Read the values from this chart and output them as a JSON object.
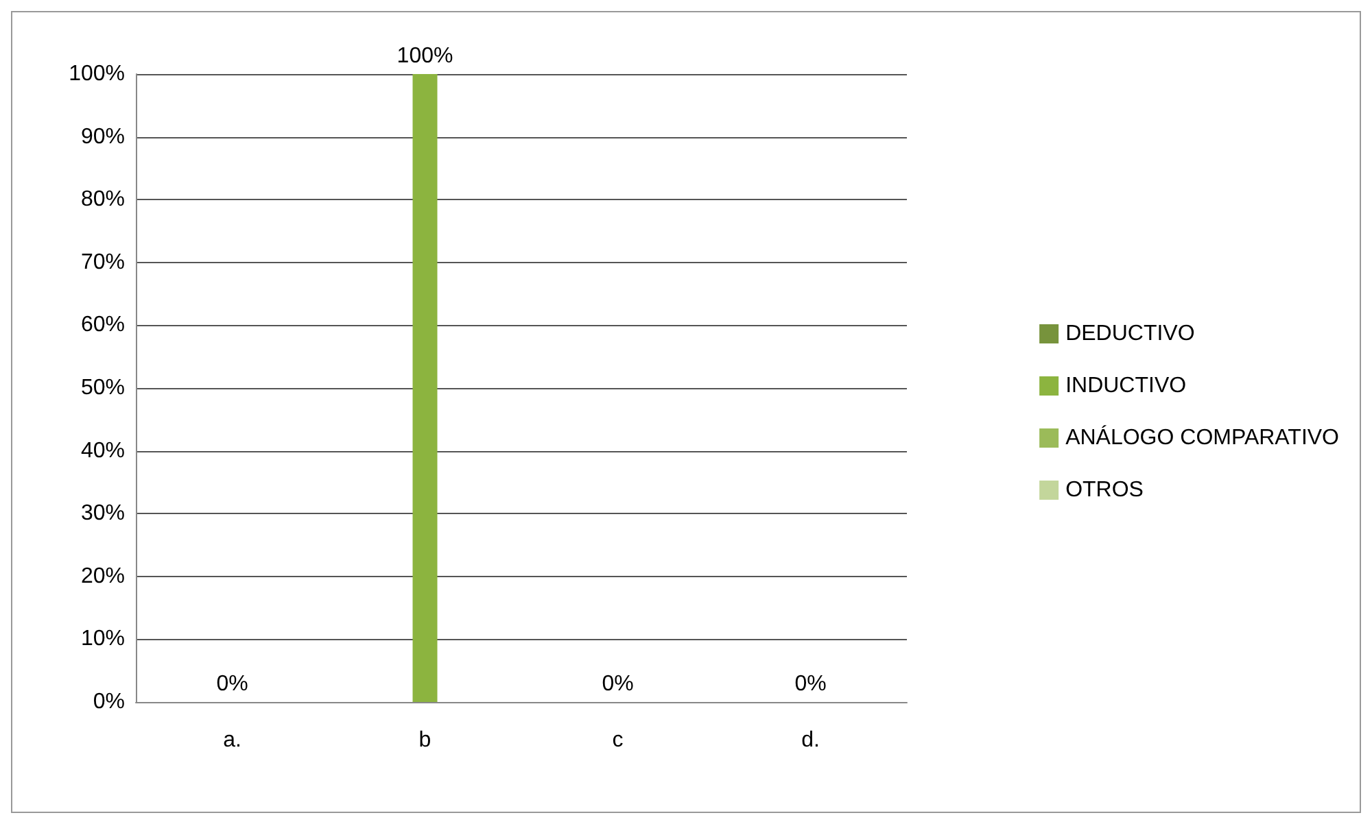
{
  "chart_data": {
    "type": "bar",
    "categories": [
      "a.",
      "b",
      "c",
      "d."
    ],
    "series": [
      {
        "name": "DEDUCTIVO",
        "color": "#77933c",
        "values": [
          0,
          null,
          null,
          null
        ],
        "value_labels": [
          "0%",
          null,
          null,
          null
        ]
      },
      {
        "name": "INDUCTIVO",
        "color": "#8cb43f",
        "values": [
          null,
          100,
          null,
          null
        ],
        "value_labels": [
          null,
          "100%",
          null,
          null
        ]
      },
      {
        "name": "ANÁLOGO COMPARATIVO",
        "color": "#9bbb59",
        "values": [
          null,
          null,
          0,
          null
        ],
        "value_labels": [
          null,
          null,
          "0%",
          null
        ]
      },
      {
        "name": "OTROS",
        "color": "#c3d69b",
        "values": [
          null,
          null,
          null,
          0
        ],
        "value_labels": [
          null,
          null,
          null,
          "0%"
        ]
      }
    ],
    "ylim": [
      0,
      100
    ],
    "yticks": [
      {
        "value": 0,
        "label": "0%"
      },
      {
        "value": 10,
        "label": "10%"
      },
      {
        "value": 20,
        "label": "20%"
      },
      {
        "value": 30,
        "label": "30%"
      },
      {
        "value": 40,
        "label": "40%"
      },
      {
        "value": 50,
        "label": "50%"
      },
      {
        "value": 60,
        "label": "60%"
      },
      {
        "value": 70,
        "label": "70%"
      },
      {
        "value": 80,
        "label": "80%"
      },
      {
        "value": 90,
        "label": "90%"
      },
      {
        "value": 100,
        "label": "100%"
      }
    ],
    "grid": "y",
    "legend": "right"
  }
}
